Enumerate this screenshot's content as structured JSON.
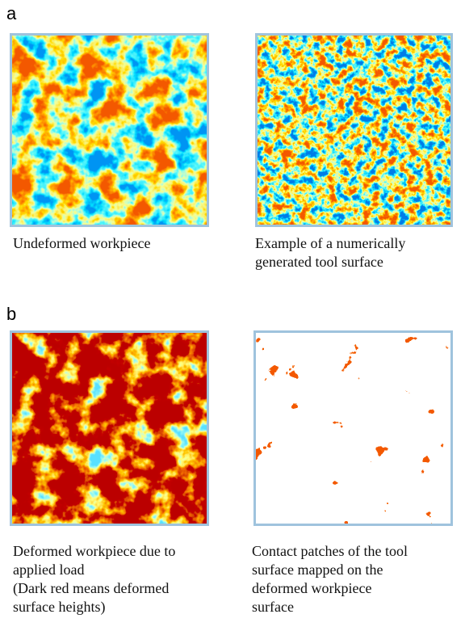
{
  "panels": [
    {
      "label": "a",
      "items": [
        {
          "caption": [
            "Undeformed workpiece"
          ]
        },
        {
          "caption": [
            "Example of a numerically",
            "generated tool surface"
          ]
        }
      ]
    },
    {
      "label": "b",
      "items": [
        {
          "caption": [
            "Deformed workpiece due to",
            "applied load",
            "(Dark red means deformed",
            "surface heights)"
          ]
        },
        {
          "caption": [
            "Contact patches of the tool",
            "surface mapped on the",
            "deformed workpiece",
            "surface"
          ]
        }
      ]
    }
  ]
}
